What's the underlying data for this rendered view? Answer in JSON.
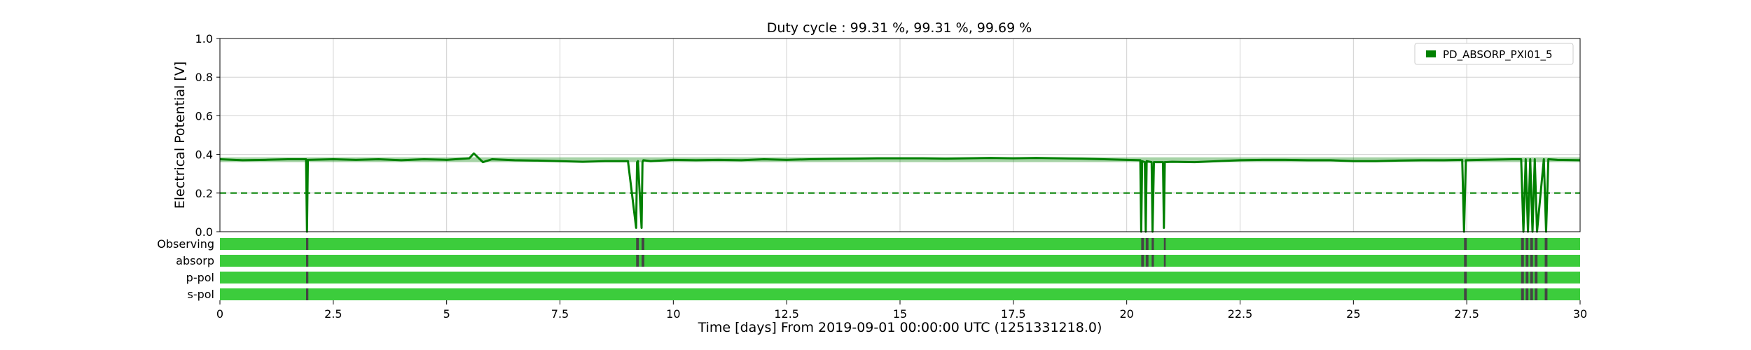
{
  "chart_data": {
    "type": "line",
    "title": "Duty cycle : 99.31 %, 99.31 %, 99.69 %",
    "xlabel": "Time [days] From 2019-09-01 00:00:00 UTC (1251331218.0)",
    "ylabel": "Electrical Potential [V]",
    "xlim": [
      0,
      30
    ],
    "ylim": [
      0,
      1.0
    ],
    "x_ticks": [
      "0",
      "2.5",
      "5",
      "7.5",
      "10",
      "12.5",
      "15",
      "17.5",
      "20",
      "22.5",
      "25",
      "27.5",
      "30"
    ],
    "y_ticks": [
      "0.0",
      "0.2",
      "0.4",
      "0.6",
      "0.8",
      "1.0"
    ],
    "grid": true,
    "legend": {
      "position": "top-right",
      "entries": [
        "PD_ABSORP_PXI01_5"
      ]
    },
    "series": [
      {
        "name": "PD_ABSORP_PXI01_5",
        "color": "#008000",
        "x": [
          0,
          0.5,
          1,
          1.5,
          1.9,
          1.92,
          1.94,
          2.5,
          3,
          3.5,
          4,
          4.5,
          5,
          5.5,
          5.6,
          5.8,
          6,
          6.5,
          7,
          7.5,
          8,
          8.5,
          9,
          9.18,
          9.2,
          9.22,
          9.3,
          9.32,
          9.34,
          9.5,
          10,
          10.5,
          11,
          11.5,
          12,
          12.5,
          13,
          13.5,
          14,
          14.5,
          15,
          15.5,
          16,
          16.5,
          17,
          17.5,
          18,
          18.5,
          19,
          19.5,
          20,
          20.3,
          20.32,
          20.34,
          20.4,
          20.42,
          20.44,
          20.55,
          20.57,
          20.6,
          20.8,
          20.82,
          20.84,
          21,
          21.5,
          22,
          22.5,
          23,
          23.5,
          24,
          24.5,
          25,
          25.5,
          26,
          26.5,
          27,
          27.4,
          27.44,
          27.48,
          27.8,
          28.5,
          28.7,
          28.75,
          28.8,
          28.85,
          28.9,
          28.95,
          29.0,
          29.05,
          29.2,
          29.25,
          29.3,
          29.5,
          30
        ],
        "y": [
          0.375,
          0.37,
          0.372,
          0.375,
          0.375,
          0.0,
          0.372,
          0.375,
          0.372,
          0.375,
          0.37,
          0.375,
          0.372,
          0.38,
          0.405,
          0.36,
          0.375,
          0.37,
          0.368,
          0.365,
          0.362,
          0.365,
          0.365,
          0.02,
          0.36,
          0.365,
          0.02,
          0.36,
          0.37,
          0.365,
          0.372,
          0.37,
          0.372,
          0.37,
          0.375,
          0.372,
          0.375,
          0.377,
          0.378,
          0.38,
          0.38,
          0.38,
          0.378,
          0.38,
          0.382,
          0.38,
          0.382,
          0.38,
          0.378,
          0.375,
          0.372,
          0.37,
          0.0,
          0.365,
          0.36,
          0.0,
          0.365,
          0.36,
          0.0,
          0.36,
          0.36,
          0.02,
          0.36,
          0.362,
          0.36,
          0.365,
          0.37,
          0.372,
          0.372,
          0.37,
          0.37,
          0.365,
          0.365,
          0.368,
          0.37,
          0.37,
          0.372,
          0.0,
          0.37,
          0.372,
          0.375,
          0.375,
          0.0,
          0.375,
          0.0,
          0.375,
          0.0,
          0.375,
          0.0,
          0.375,
          0.0,
          0.375,
          0.372,
          0.37
        ]
      }
    ],
    "threshold": {
      "value": 0.2,
      "style": "dashed",
      "color": "#008000"
    },
    "segment_rows": [
      {
        "label": "Observing",
        "color": "#3ccc3c",
        "gap_color": "#444444",
        "gaps": [
          [
            1.9,
            1.95
          ],
          [
            9.18,
            9.24
          ],
          [
            9.3,
            9.36
          ],
          [
            20.32,
            20.38
          ],
          [
            20.42,
            20.48
          ],
          [
            20.55,
            20.6
          ],
          [
            20.82,
            20.86
          ],
          [
            27.44,
            27.5
          ],
          [
            28.7,
            28.76
          ],
          [
            28.8,
            28.86
          ],
          [
            28.9,
            28.96
          ],
          [
            29.0,
            29.06
          ],
          [
            29.22,
            29.28
          ]
        ]
      },
      {
        "label": "absorp",
        "color": "#3ccc3c",
        "gap_color": "#444444",
        "gaps": [
          [
            1.9,
            1.95
          ],
          [
            9.18,
            9.24
          ],
          [
            9.3,
            9.36
          ],
          [
            20.32,
            20.38
          ],
          [
            20.42,
            20.48
          ],
          [
            20.55,
            20.6
          ],
          [
            20.82,
            20.86
          ],
          [
            27.44,
            27.5
          ],
          [
            28.7,
            28.76
          ],
          [
            28.8,
            28.86
          ],
          [
            28.9,
            28.96
          ],
          [
            29.0,
            29.06
          ],
          [
            29.22,
            29.28
          ]
        ]
      },
      {
        "label": "p-pol",
        "color": "#3ccc3c",
        "gap_color": "#444444",
        "gaps": [
          [
            1.9,
            1.95
          ],
          [
            27.44,
            27.5
          ],
          [
            28.7,
            28.76
          ],
          [
            28.8,
            28.86
          ],
          [
            28.9,
            28.96
          ],
          [
            29.0,
            29.06
          ],
          [
            29.22,
            29.28
          ]
        ]
      },
      {
        "label": "s-pol",
        "color": "#3ccc3c",
        "gap_color": "#444444",
        "gaps": [
          [
            1.9,
            1.95
          ],
          [
            27.44,
            27.5
          ],
          [
            28.7,
            28.76
          ],
          [
            28.8,
            28.86
          ],
          [
            28.9,
            28.96
          ],
          [
            29.0,
            29.06
          ],
          [
            29.22,
            29.28
          ]
        ]
      }
    ]
  }
}
